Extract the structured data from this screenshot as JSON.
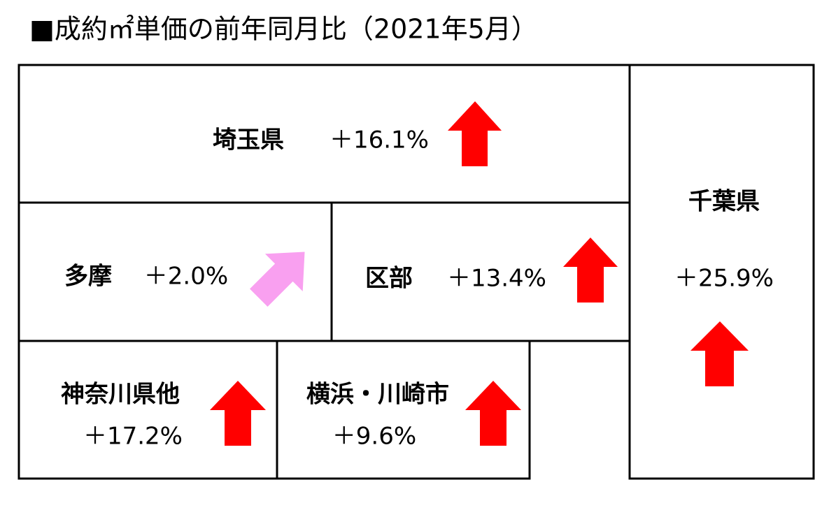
{
  "title": "■成約㎡単価の前年同月比（2021年5月）",
  "regions": [
    {
      "name": "埼玉県",
      "change": "＋16.1%"
    },
    {
      "name": "多摩",
      "change": "＋2.0%"
    },
    {
      "name": "区部",
      "change": "＋13.4%"
    },
    {
      "name": "千葉県",
      "change": "＋25.9%"
    },
    {
      "name": "神奈川県他",
      "change": "＋17.2%"
    },
    {
      "name": "横浜・川崎市",
      "change": "＋9.6%"
    }
  ]
}
